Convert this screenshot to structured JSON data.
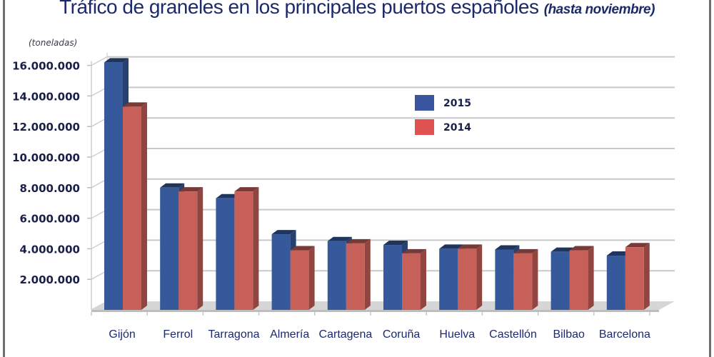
{
  "title": "Tráfico de graneles en los principales puertos españoles",
  "subtitle": "(hasta noviembre)",
  "unit_label": "(toneladas)",
  "colors": {
    "2015": "#35599a",
    "2014": "#c8605a",
    "title": "#1c2a6b"
  },
  "chart_data": {
    "type": "bar",
    "style": "3d-clustered-column",
    "title": "Tráfico de graneles en los principales puertos españoles (hasta noviembre)",
    "xlabel": "",
    "ylabel": "(toneladas)",
    "categories": [
      "Gijón",
      "Ferrol",
      "Tarragona",
      "Almería",
      "Cartagena",
      "Coruña",
      "Huelva",
      "Castellón",
      "Bilbao",
      "Barcelona"
    ],
    "series": [
      {
        "name": "2015",
        "values": [
          16200000,
          8000000,
          7300000,
          4950000,
          4500000,
          4250000,
          4000000,
          3950000,
          3800000,
          3550000
        ]
      },
      {
        "name": "2014",
        "values": [
          13300000,
          7750000,
          7750000,
          3900000,
          4350000,
          3700000,
          4000000,
          3700000,
          3900000,
          4100000
        ]
      }
    ],
    "ylim": [
      0,
      16000000
    ],
    "yticks": [
      2000000,
      4000000,
      6000000,
      8000000,
      10000000,
      12000000,
      14000000,
      16000000
    ],
    "ytick_labels": [
      "2.000.000",
      "4.000.000",
      "6.000.000",
      "8.000.000",
      "10.000.000",
      "12.000.000",
      "14.000.000",
      "16.000.000"
    ],
    "grid": true,
    "legend": {
      "position": "top-center",
      "entries": [
        "2015",
        "2014"
      ]
    }
  }
}
